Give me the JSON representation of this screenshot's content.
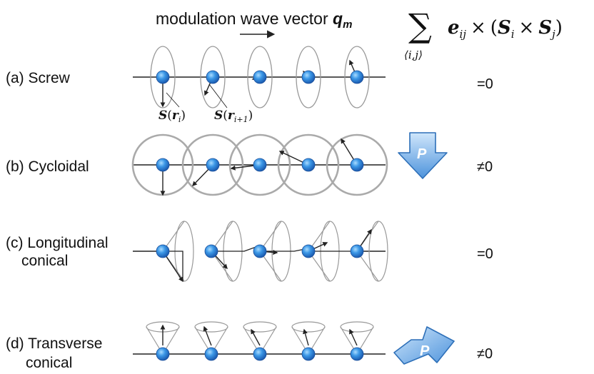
{
  "header": {
    "text": "modulation wave vector ",
    "q_symbol": "q",
    "q_subscript": "m"
  },
  "formula": {
    "sum_symbol": "∑",
    "sum_index": "⟨i,j⟩",
    "e": "e",
    "e_sub": "ij",
    "times": "×",
    "open": "(",
    "S": "S",
    "Si_sub": "i",
    "Sj_sub": "j",
    "close": ")"
  },
  "rows": [
    {
      "id": "a",
      "label": "(a) Screw",
      "result": "=0"
    },
    {
      "id": "b",
      "label": "(b) Cycloidal",
      "result": "≠0",
      "polarization": "P"
    },
    {
      "id": "c",
      "label_lines": [
        "(c) Longitudinal",
        "conical"
      ],
      "result": "=0"
    },
    {
      "id": "d",
      "label_lines": [
        "(d) Transverse",
        "conical"
      ],
      "result": "≠0",
      "polarization": "P"
    }
  ],
  "spin_labels": {
    "first": {
      "S": "S",
      "open": "(",
      "r": "r",
      "sub": "i",
      "close": ")"
    },
    "second": {
      "S": "S",
      "open": "(",
      "r": "r",
      "sub": "i+1",
      "close": ")"
    }
  },
  "colors": {
    "atom": "#2f8fe0",
    "atom_edge": "#1b4f9a",
    "orbit": "#aaaaaa",
    "arrow_fill": "#6aa9e6",
    "arrow_edge": "#2d6fb8"
  }
}
